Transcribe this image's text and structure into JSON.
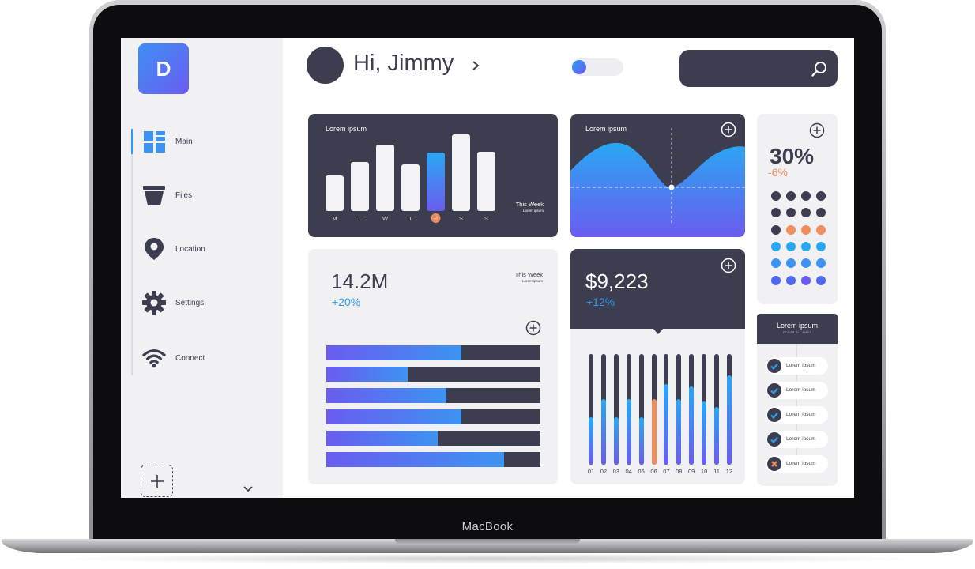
{
  "device": {
    "brand": "MacBook"
  },
  "sidebar": {
    "logo_letter": "D",
    "items": [
      {
        "label": "Main",
        "icon": "grid-icon",
        "active": true
      },
      {
        "label": "Files",
        "icon": "bucket-icon"
      },
      {
        "label": "Location",
        "icon": "location-pin-icon"
      },
      {
        "label": "Settings",
        "icon": "gear-icon"
      },
      {
        "label": "Connect",
        "icon": "wifi-icon"
      }
    ]
  },
  "header": {
    "greeting": "Hi, Jimmy",
    "toggle_on": false,
    "search_placeholder": ""
  },
  "weekly_card": {
    "title": "Lorem ipsum",
    "period": "This Week",
    "period_sub": "Lorem ipsum",
    "days": [
      "M",
      "T",
      "W",
      "T",
      "F",
      "S",
      "S"
    ],
    "values": [
      45,
      62,
      84,
      59,
      74,
      97,
      75
    ],
    "highlight_index": 4
  },
  "wave_card": {
    "title": "Lorem ipsum"
  },
  "percent_card": {
    "value": "30%",
    "change": "-6%",
    "dot_rows": [
      [
        "#3c3d4f",
        "#3c3d4f",
        "#3c3d4f",
        "#3c3d4f"
      ],
      [
        "#3c3d4f",
        "#3c3d4f",
        "#3c3d4f",
        "#3c3d4f"
      ],
      [
        "#3c3d4f",
        "#f08d5e",
        "#f08d5e",
        "#f08d5e"
      ],
      [
        "#2aa7f2",
        "#2aa7f2",
        "#2aa7f2",
        "#2aa7f2"
      ],
      [
        "#3d93f2",
        "#3d93f2",
        "#3d93f2",
        "#3d93f2"
      ],
      [
        "#5068ef",
        "#5068ef",
        "#6a5cf0",
        "#5068ef"
      ]
    ]
  },
  "reach_card": {
    "value": "14.2M",
    "change": "+20%",
    "period": "This Week",
    "period_sub": "Lorem ipsum",
    "bars": [
      0.63,
      0.38,
      0.56,
      0.63,
      0.52,
      0.83
    ]
  },
  "revenue_card": {
    "value": "$9,223",
    "change": "+12%",
    "months": [
      "01",
      "02",
      "03",
      "04",
      "05",
      "06",
      "07",
      "08",
      "09",
      "10",
      "11",
      "12"
    ],
    "levels": [
      0.43,
      0.59,
      0.43,
      0.59,
      0.43,
      0.59,
      0.73,
      0.59,
      0.71,
      0.57,
      0.52,
      0.81
    ],
    "highlight_index": 5,
    "colors": {
      "normal": "#2aa7f2",
      "highlight": "#f08d5e",
      "low": "#6a5cf0"
    }
  },
  "checklist_card": {
    "title": "Lorem ipsum",
    "subtitle": "DOLOR SIT AMET",
    "items": [
      {
        "label": "Lorem ipsum",
        "state": "checked"
      },
      {
        "label": "Lorem ipsum",
        "state": "checked"
      },
      {
        "label": "Lorem ipsum",
        "state": "checked"
      },
      {
        "label": "Lorem ipsum",
        "state": "checked"
      },
      {
        "label": "Lorem ipsum",
        "state": "crossed"
      }
    ]
  },
  "colors": {
    "dark": "#3c3d4f",
    "accent_blue": "#2f9bf0",
    "accent_purple": "#6a5cf0",
    "orange": "#f08d5e"
  }
}
